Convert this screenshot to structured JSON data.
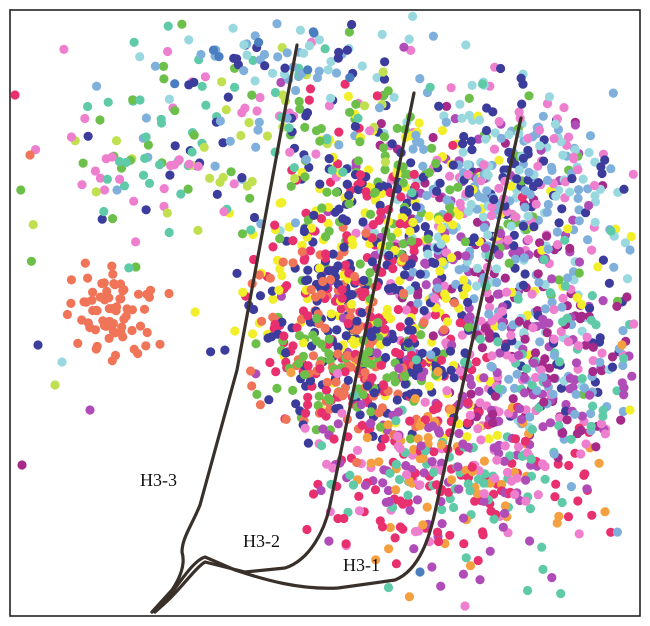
{
  "wells": [
    {
      "id": "H3-1",
      "label": "H3-1"
    },
    {
      "id": "H3-2",
      "label": "H3-2"
    },
    {
      "id": "H3-3",
      "label": "H3-3"
    }
  ],
  "colors": {
    "frame": "#222222",
    "wellbore": "#3a302a",
    "event_palette": [
      "#e8306e",
      "#3b3c9c",
      "#b04cb8",
      "#f2ef2a",
      "#6cc04a",
      "#f07458",
      "#9ad8e0",
      "#7fb0dc",
      "#ee7fcf",
      "#5fcaa8",
      "#a52a8a",
      "#c0e050",
      "#f5a040",
      "#4a7ec0"
    ]
  }
}
